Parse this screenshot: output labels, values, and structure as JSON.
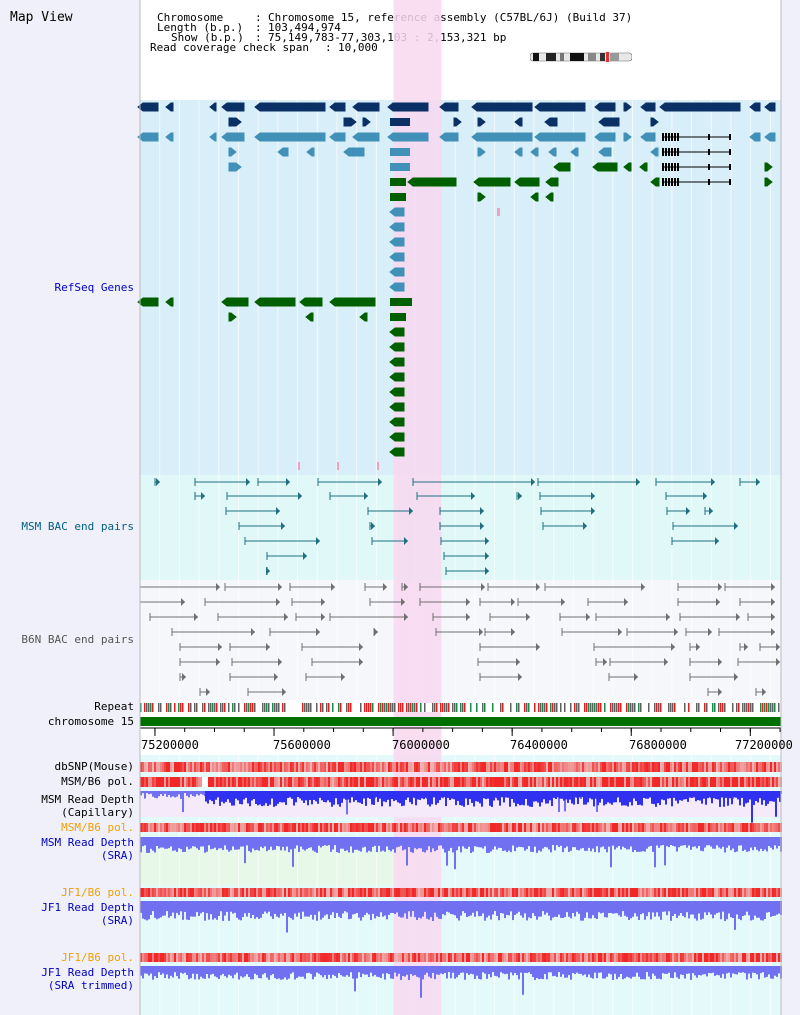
{
  "page": {
    "title": "Map View"
  },
  "header": {
    "chromosome_key": "Chromosome",
    "chromosome_value": "Chromosome 15, reference assembly (C57BL/6J) (Build 37)",
    "length_key": "Length (b.p.)",
    "length_value": "103,494,974",
    "show_key": "Show (b.p.)",
    "show_value": "75,149,783-77,303,103 : 2,153,321 bp",
    "coverage_key": "Read coverage check span",
    "coverage_value": "10,000"
  },
  "tracks": {
    "refseq": "RefSeq Genes",
    "msm_bac": "MSM BAC end pairs",
    "b6n_bac": "B6N BAC end pairs",
    "repeat": "Repeat",
    "chromosome": "chromosome 15",
    "dbsnp": "dbSNP(Mouse)",
    "msm_b6_pol_1": "MSM/B6 pol.",
    "msm_depth_cap_1": "MSM Read Depth",
    "msm_depth_cap_2": "(Capillary)",
    "msm_b6_pol_2": "MSM/B6 pol.",
    "msm_depth_sra_1": "MSM Read Depth",
    "msm_depth_sra_2": "(SRA)",
    "jf1_b6_pol_1": "JF1/B6 pol.",
    "jf1_depth_sra_1": "JF1 Read Depth",
    "jf1_depth_sra_2": "(SRA)",
    "jf1_b6_pol_2": "JF1/B6 pol.",
    "jf1_depth_trim_1": "JF1 Read Depth",
    "jf1_depth_trim_2": "(SRA trimmed)"
  },
  "axis": {
    "ticks": [
      "75200000",
      "75600000",
      "76000000",
      "76400000",
      "76800000",
      "77200000"
    ],
    "tick_values": [
      75200000,
      75600000,
      76000000,
      76400000,
      76800000,
      77200000
    ],
    "range": [
      75149783,
      77303103
    ]
  },
  "highlight": {
    "start": 76002000,
    "end": 76162000,
    "color": "#f8d8f0"
  },
  "colors": {
    "refseq_bg": "#d8eef8",
    "msm_bac_bg": "#e0f8f8",
    "b6n_bg": "#f5f7fa",
    "gene_dark": "#0a3066",
    "gene_mid": "#4090b8",
    "gene_green": "#006000",
    "bac_msm": "#207080",
    "bac_b6n": "#707070",
    "depth_blue": "#3030f0",
    "depth_light": "#7070f0",
    "label_blue": "#0000c0",
    "label_orange": "#f0a000",
    "label_teal": "#006080"
  }
}
